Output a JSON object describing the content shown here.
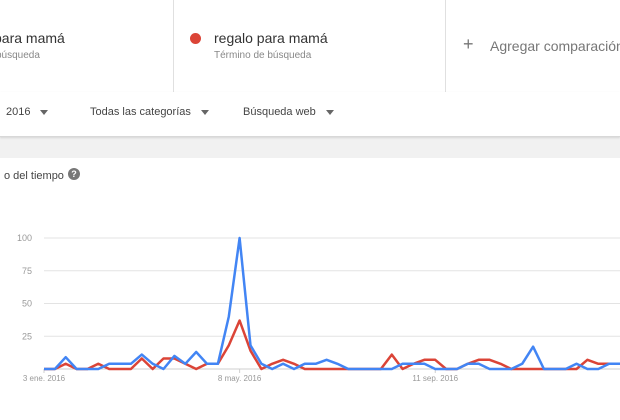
{
  "terms": [
    {
      "title": "para mamá",
      "subtitle": "búsqueda",
      "color": "#4285f4"
    },
    {
      "title": "regalo para mamá",
      "subtitle": "Término de búsqueda",
      "color": "#db4437"
    }
  ],
  "add_comparison": {
    "icon": "plus-icon",
    "label": "Agregar comparación"
  },
  "filters": {
    "period": "2016",
    "category": "Todas las categorías",
    "search_type": "Búsqueda web"
  },
  "card": {
    "title": "o del tiempo",
    "help_icon": "help-icon",
    "help_glyph": "?"
  },
  "chart_data": {
    "type": "line",
    "title": "",
    "xlabel": "",
    "ylabel": "",
    "ylim": [
      0,
      100
    ],
    "yticks": [
      "100",
      "75",
      "50",
      "25"
    ],
    "xticks": [
      "3 ene. 2016",
      "8 may. 2016",
      "11 sep. 2016"
    ],
    "grid": true,
    "series": [
      {
        "name": "para mamá",
        "color": "#4285f4",
        "values": [
          0,
          0,
          9,
          0,
          0,
          0,
          4,
          4,
          4,
          11,
          4,
          0,
          10,
          4,
          13,
          4,
          4,
          40,
          100,
          18,
          4,
          0,
          4,
          0,
          4,
          4,
          7,
          4,
          0,
          0,
          0,
          0,
          0,
          4,
          4,
          4,
          0,
          0,
          0,
          4,
          4,
          0,
          0,
          0,
          4,
          17,
          0,
          0,
          0,
          4,
          0,
          0,
          4,
          4
        ]
      },
      {
        "name": "regalo para mamá",
        "color": "#db4437",
        "values": [
          0,
          0,
          4,
          0,
          0,
          4,
          0,
          0,
          0,
          8,
          0,
          8,
          8,
          4,
          0,
          4,
          4,
          18,
          37,
          14,
          0,
          4,
          7,
          4,
          0,
          0,
          0,
          0,
          0,
          0,
          0,
          0,
          11,
          0,
          4,
          7,
          7,
          0,
          0,
          4,
          7,
          7,
          4,
          0,
          0,
          0,
          0,
          0,
          0,
          0,
          7,
          4,
          4,
          4
        ]
      }
    ]
  }
}
